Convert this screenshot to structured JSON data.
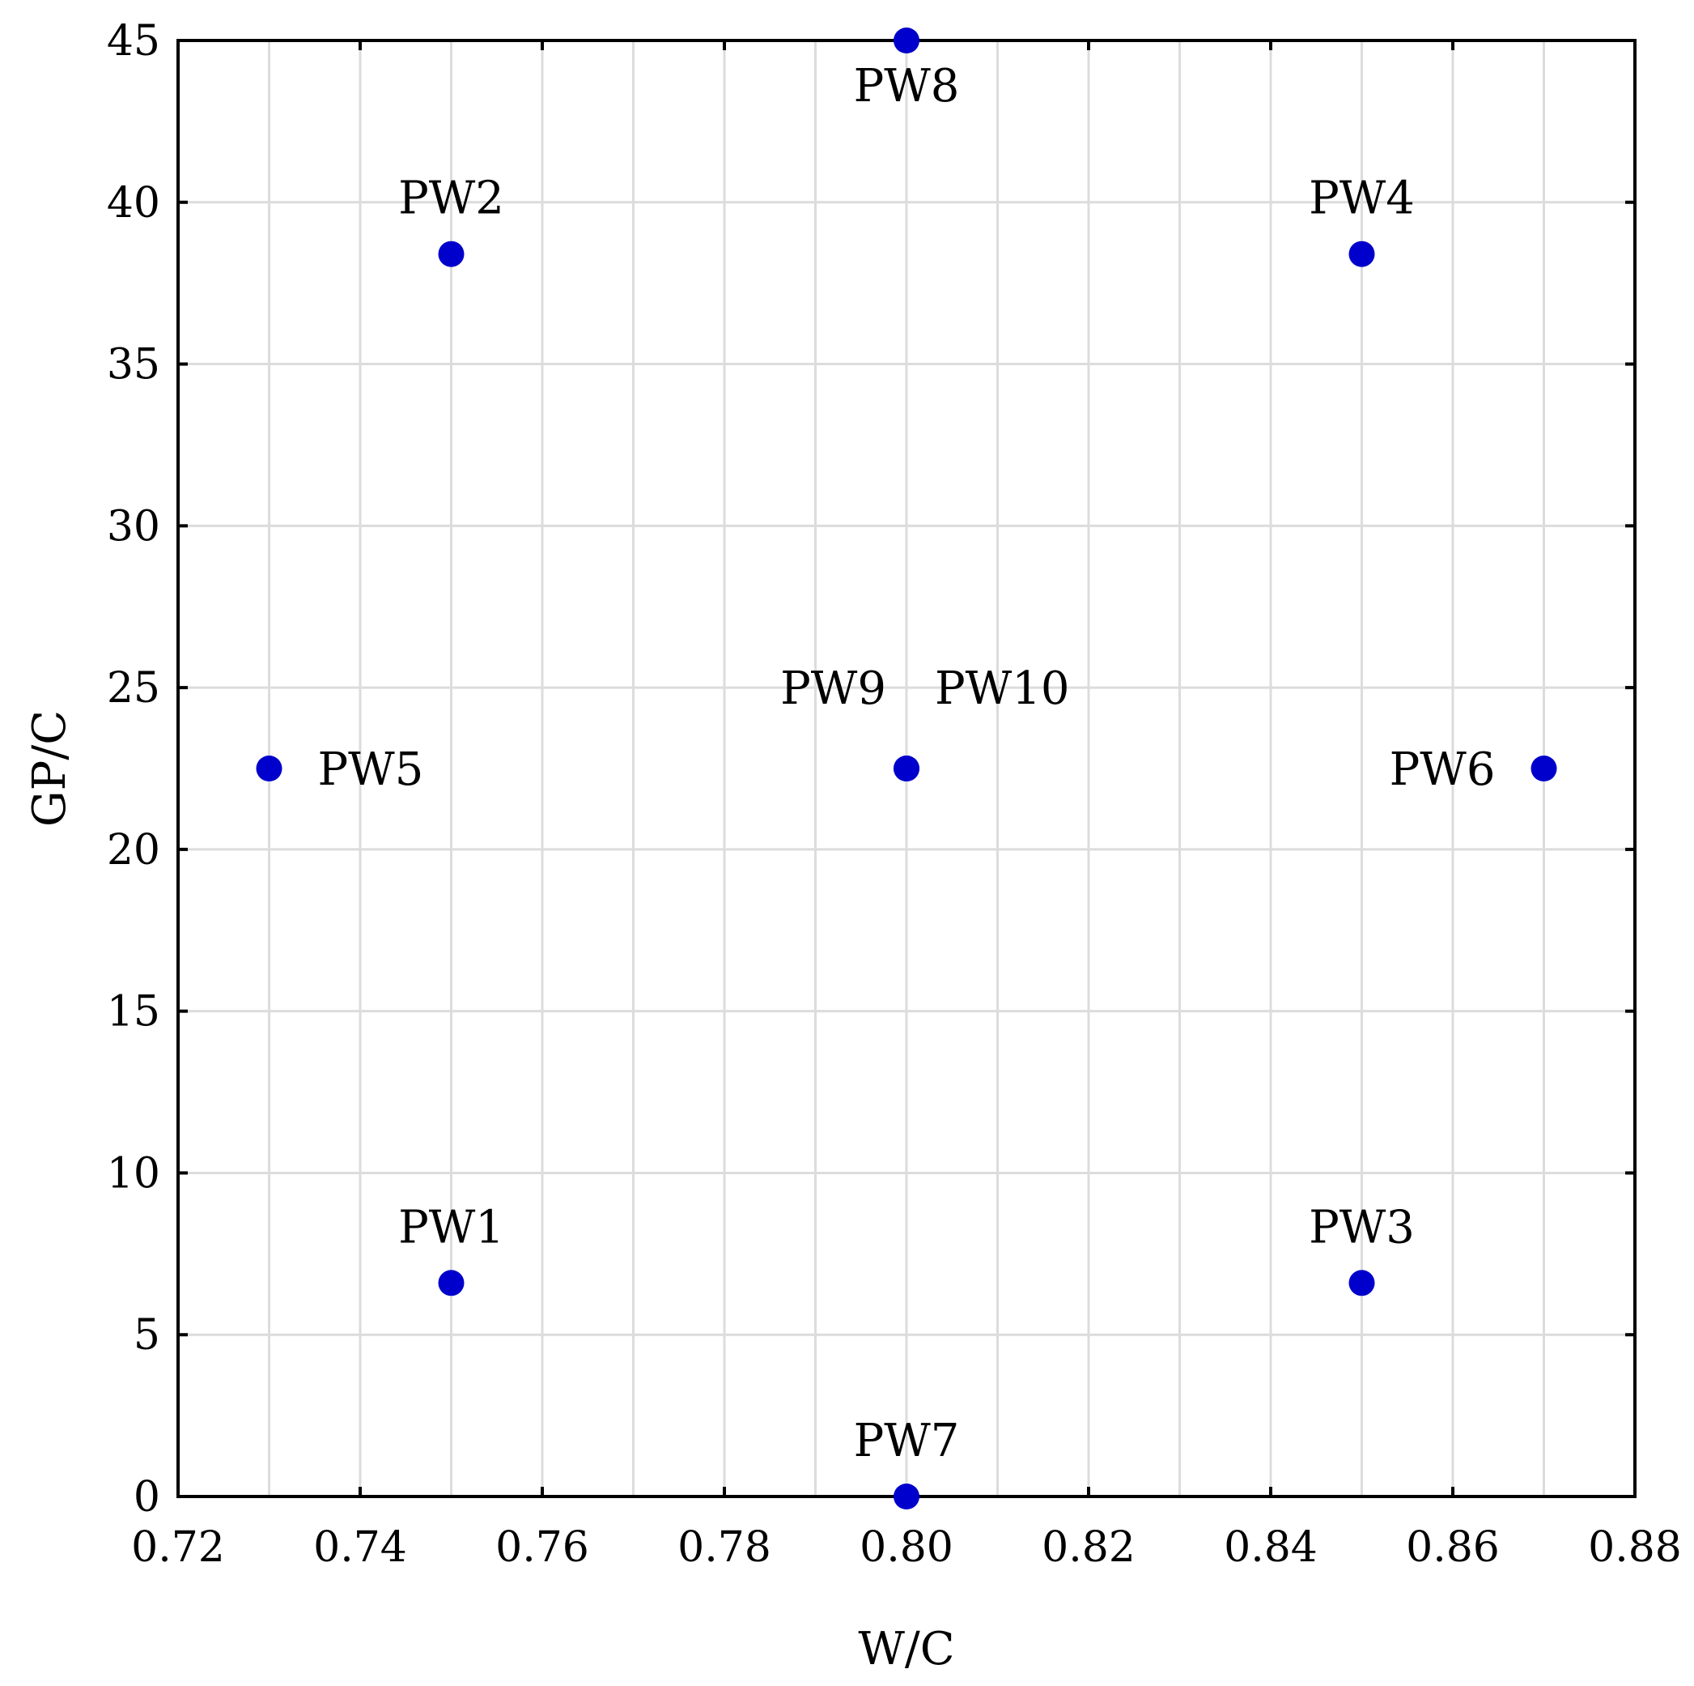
{
  "chart_data": {
    "type": "scatter",
    "title": "",
    "xlabel": "W/C",
    "ylabel": "GP/C",
    "xlim": [
      0.72,
      0.88
    ],
    "ylim": [
      0,
      45
    ],
    "x_ticks": [
      "0.72",
      "0.74",
      "0.76",
      "0.78",
      "0.80",
      "0.82",
      "0.84",
      "0.86",
      "0.88"
    ],
    "y_ticks": [
      "0",
      "5",
      "10",
      "15",
      "20",
      "25",
      "30",
      "35",
      "40",
      "45"
    ],
    "grid": true,
    "point_color": "#0000cc",
    "points": [
      {
        "name": "PW1",
        "x": 0.75,
        "y": 6.6,
        "label_pos": "above"
      },
      {
        "name": "PW2",
        "x": 0.75,
        "y": 38.4,
        "label_pos": "above"
      },
      {
        "name": "PW3",
        "x": 0.85,
        "y": 6.6,
        "label_pos": "above"
      },
      {
        "name": "PW4",
        "x": 0.85,
        "y": 38.4,
        "label_pos": "above"
      },
      {
        "name": "PW5",
        "x": 0.73,
        "y": 22.5,
        "label_pos": "right"
      },
      {
        "name": "PW6",
        "x": 0.87,
        "y": 22.5,
        "label_pos": "left"
      },
      {
        "name": "PW7",
        "x": 0.8,
        "y": 0,
        "label_pos": "above"
      },
      {
        "name": "PW8",
        "x": 0.8,
        "y": 45,
        "label_pos": "below"
      },
      {
        "name": "PW9",
        "x": 0.8,
        "y": 22.5,
        "label_pos": "above-left"
      },
      {
        "name": "PW10",
        "x": 0.8,
        "y": 22.5,
        "label_pos": "above-right"
      }
    ]
  }
}
